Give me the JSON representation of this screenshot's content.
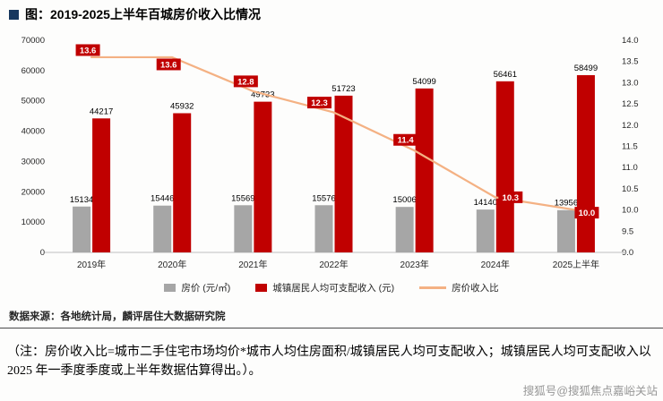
{
  "title": "图：2019-2025上半年百城房价收入比情况",
  "chart_data": {
    "type": "bar",
    "title": "图：2019-2025上半年百城房价收入比情况",
    "categories": [
      "2019年",
      "2020年",
      "2021年",
      "2022年",
      "2023年",
      "2024年",
      "2025上半年"
    ],
    "series": [
      {
        "name": "房价 (元/㎡)",
        "type": "bar",
        "axis": "left",
        "color": "#a6a6a6",
        "values": [
          15134,
          15446,
          15569,
          15576,
          15006,
          14140,
          13956
        ]
      },
      {
        "name": "城镇居民人均可支配收入 (元)",
        "type": "bar",
        "axis": "left",
        "color": "#c00000",
        "values": [
          44217,
          45932,
          49733,
          51723,
          54099,
          56461,
          58499
        ]
      },
      {
        "name": "房价收入比",
        "type": "line",
        "axis": "right",
        "color": "#f4b183",
        "values": [
          13.6,
          13.6,
          12.8,
          12.3,
          11.4,
          10.3,
          10.0
        ],
        "label_bg": "#c00000",
        "label_color": "#ffffff",
        "label_dx": [
          -4,
          -4,
          -8,
          -16,
          -10,
          17,
          12
        ],
        "label_dy": [
          -8,
          8,
          -11,
          -11,
          -12,
          0,
          3
        ]
      }
    ],
    "left_axis": {
      "min": 0,
      "max": 70000,
      "step": 10000
    },
    "right_axis": {
      "min": 9.0,
      "max": 14.0,
      "step": 0.5
    },
    "grid": false,
    "legend_position": "bottom"
  },
  "source": "数据来源：各地统计局，麟评居住大数据研究院",
  "note": "（注：房价收入比=城市二手住宅市场均价*城市人均住房面积/城镇居民人均可支配收入；城镇居民人均可支配收入以 2025 年一季度季度或上半年数据估算得出。）。",
  "watermark": "搜狐号@搜狐焦点嘉峪关站"
}
